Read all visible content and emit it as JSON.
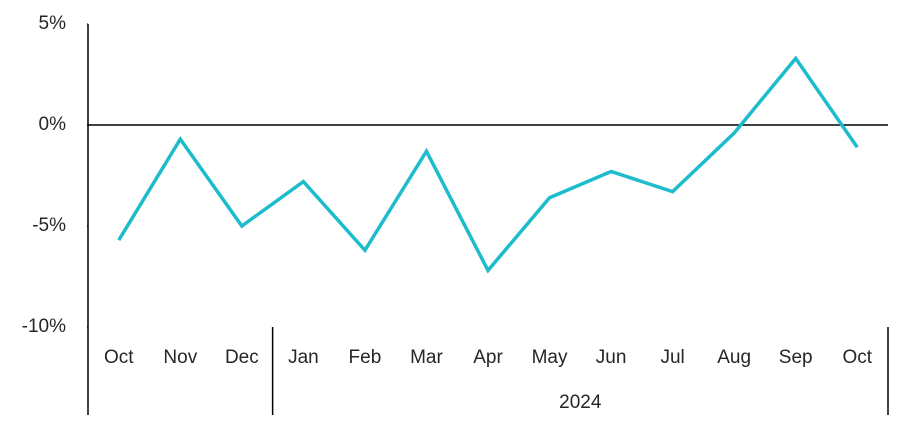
{
  "chart_data": {
    "type": "line",
    "categories": [
      "Oct",
      "Nov",
      "Dec",
      "Jan",
      "Feb",
      "Mar",
      "Apr",
      "May",
      "Jun",
      "Jul",
      "Aug",
      "Sep",
      "Oct"
    ],
    "groups": [
      {
        "label": null,
        "span": 3
      },
      {
        "label": "2024",
        "span": 10
      }
    ],
    "values": [
      -5.7,
      -0.7,
      -5.0,
      -2.8,
      -6.2,
      -1.3,
      -7.2,
      -3.6,
      -2.3,
      -3.3,
      -0.4,
      3.3,
      -1.1
    ],
    "color": "#1cbccc",
    "ylim": [
      -10,
      5
    ],
    "yticks": [
      {
        "value": -10,
        "label": "-10%"
      },
      {
        "value": -5,
        "label": "-5%"
      },
      {
        "value": 0,
        "label": "0%"
      },
      {
        "value": 5,
        "label": "5%"
      }
    ]
  }
}
